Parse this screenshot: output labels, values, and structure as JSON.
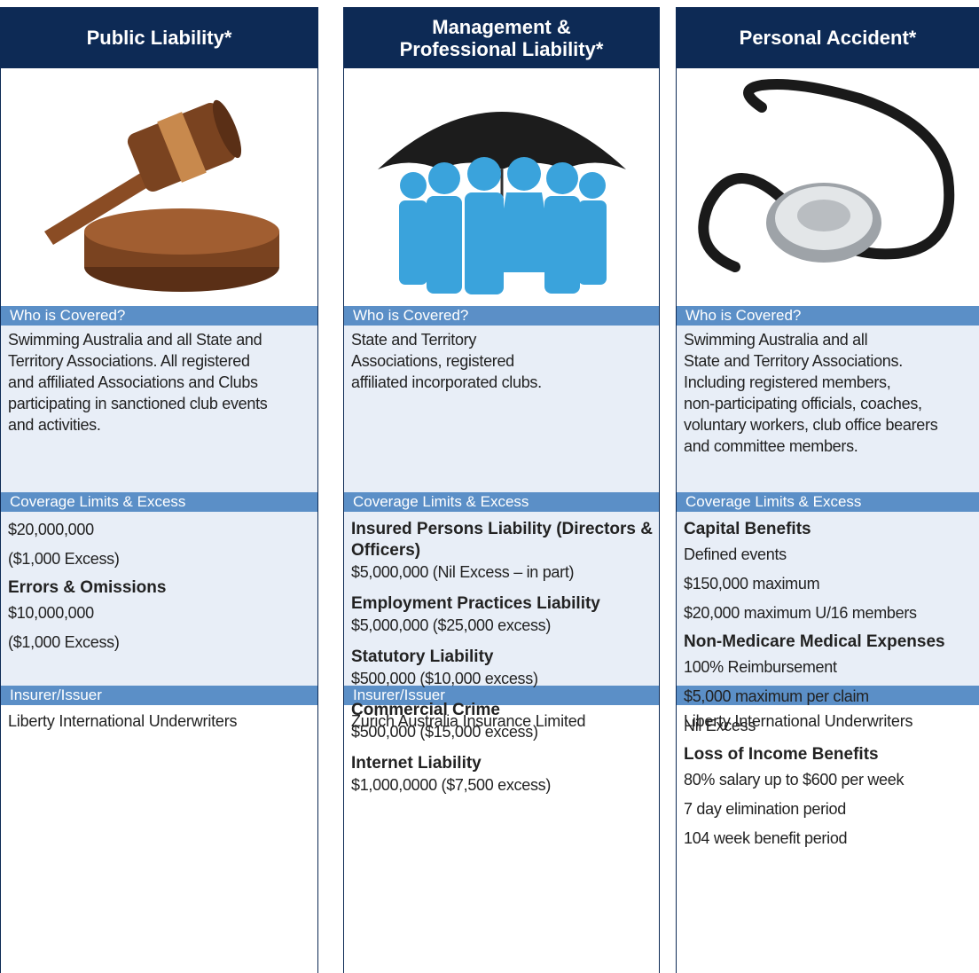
{
  "columns": [
    {
      "title": "Public Liability*",
      "who_label": "Who is Covered?",
      "who_lines": [
        "Swimming Australia and all State and",
        "Territory Associations.  All registered",
        "and affiliated Associations and Clubs",
        "participating in sanctioned club events",
        "and activities."
      ],
      "coverage_label": "Coverage Limits & Excess",
      "coverage": [
        {
          "lines": [
            "$20,000,000",
            "($1,000 Excess)"
          ]
        },
        {
          "heading": "Errors & Omissions",
          "lines": [
            "$10,000,000",
            "($1,000 Excess)"
          ]
        }
      ],
      "insurer_label": "Insurer/Issuer",
      "insurer": "Liberty International Underwriters"
    },
    {
      "title_lines": [
        "Management &",
        "Professional Liability*"
      ],
      "who_label": "Who is Covered?",
      "who_lines": [
        "State and Territory",
        "Associations, registered",
        "affiliated incorporated clubs."
      ],
      "coverage_label": "Coverage Limits & Excess",
      "coverage": [
        {
          "heading": "Insured Persons Liability (Directors & Officers)",
          "lines": [
            "$5,000,000 (Nil Excess – in part)"
          ]
        },
        {
          "heading": "Employment Practices Liability",
          "lines": [
            "$5,000,000 ($25,000 excess)"
          ]
        },
        {
          "heading": "Statutory Liability",
          "lines": [
            "$500,000 ($10,000 excess)"
          ]
        },
        {
          "heading": "Commercial Crime",
          "lines": [
            "$500,000 ($15,000 excess)"
          ]
        },
        {
          "heading": "Internet Liability",
          "lines": [
            "$1,000,0000 ($7,500 excess)"
          ]
        }
      ],
      "insurer_label": "Insurer/Issuer",
      "insurer": "Zurich Australia Insurance Limited"
    },
    {
      "title": "Personal Accident*",
      "who_label": "Who is Covered?",
      "who_lines": [
        "Swimming Australia and all",
        "State and Territory Associations.",
        "Including registered members,",
        "non-participating officials, coaches,",
        "voluntary workers, club office bearers",
        "and committee members."
      ],
      "coverage_label": "Coverage Limits & Excess",
      "coverage": [
        {
          "heading": "Capital Benefits",
          "lines": [
            "Defined events",
            "$150,000 maximum",
            "$20,000 maximum U/16 members"
          ]
        },
        {
          "heading": "Non-Medicare Medical Expenses",
          "lines": [
            "100% Reimbursement",
            "$5,000 maximum per claim",
            "Nil Excess"
          ]
        },
        {
          "heading": "Loss of Income Benefits",
          "lines": [
            "80% salary up to $600 per week",
            "7 day elimination period",
            "104 week benefit period"
          ]
        }
      ],
      "insurer": "Liberty International Underwriters"
    }
  ]
}
